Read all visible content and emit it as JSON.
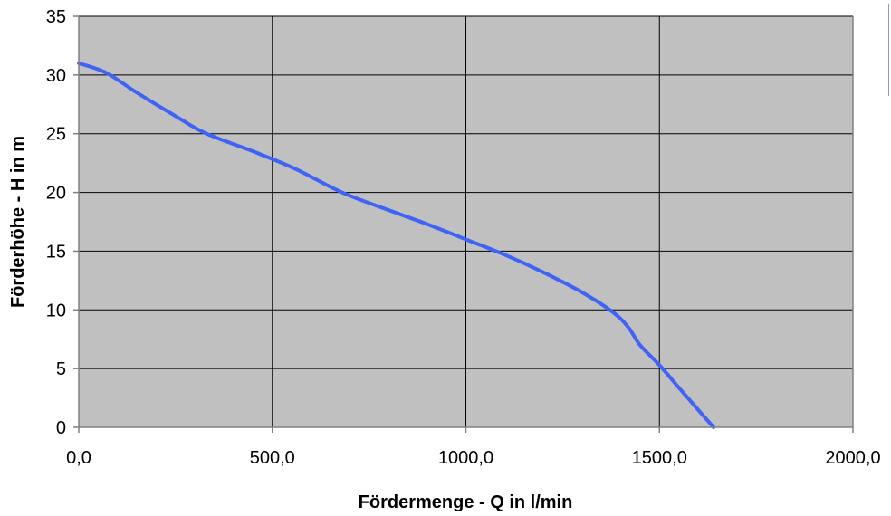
{
  "chart_data": {
    "type": "line",
    "title": "",
    "xlabel": "Fördermenge - Q in l/min",
    "ylabel": "Förderhöhe - H in m",
    "xlim": [
      0,
      2000
    ],
    "ylim": [
      0,
      35
    ],
    "x_ticks": [
      0,
      500,
      1000,
      1500,
      2000
    ],
    "x_tick_labels": [
      "0,0",
      "500,0",
      "1000,0",
      "1500,0",
      "2000,0"
    ],
    "y_ticks": [
      0,
      5,
      10,
      15,
      20,
      25,
      30,
      35
    ],
    "y_tick_labels": [
      "0",
      "5",
      "10",
      "15",
      "20",
      "25",
      "30",
      "35"
    ],
    "grid": true,
    "legend": "none",
    "plot_background": "#c0c0c0",
    "series": [
      {
        "color": "#3f63f5",
        "x": [
          0,
          70,
          150,
          250,
          330,
          450,
          560,
          680,
          800,
          900,
          1000,
          1100,
          1200,
          1300,
          1380,
          1420,
          1450,
          1500,
          1560,
          1640
        ],
        "y": [
          31,
          30.2,
          28.5,
          26.5,
          25,
          23.5,
          22,
          20,
          18.5,
          17.3,
          16,
          14.7,
          13.2,
          11.5,
          9.8,
          8.5,
          7,
          5.3,
          3,
          0
        ]
      }
    ]
  }
}
